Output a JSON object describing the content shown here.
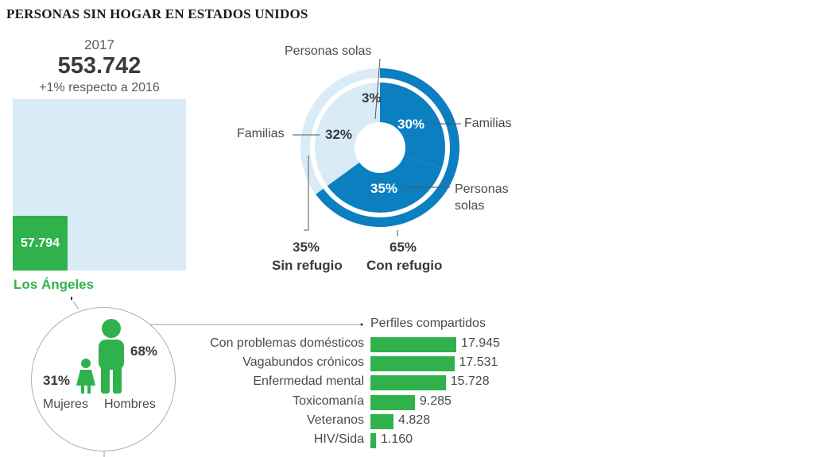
{
  "title": "PERSONAS SIN HOGAR EN ESTADOS UNIDOS",
  "summary": {
    "year": "2017",
    "total": "553.742",
    "change": "+1% respecto a 2016",
    "la_value": "57.794",
    "la_label": "Los Ángeles"
  },
  "gender": {
    "women_pct": "31%",
    "men_pct": "68%",
    "women_label": "Mujeres",
    "men_label": "Hombres"
  },
  "colors": {
    "light_blue": "#d9ebf7",
    "blue": "#0b7fc0",
    "green": "#2fb24c",
    "text": "#4a4a4a"
  },
  "chart_data": [
    {
      "type": "pie",
      "labels": [
        "Personas solas",
        "Familias",
        "Familias",
        "Personas solas"
      ],
      "inner_ring": [
        {
          "label": "Familias",
          "value": 30,
          "display": "30%",
          "group": "Con refugio"
        },
        {
          "label": "Personas solas",
          "value": 35,
          "display": "35%",
          "group": "Con refugio"
        },
        {
          "label": "Familias",
          "value": 32,
          "display": "32%",
          "group": "Sin refugio"
        },
        {
          "label": "Personas solas",
          "value": 3,
          "display": "3%",
          "group": "Sin refugio"
        }
      ],
      "outer_ring": [
        {
          "label": "Con refugio",
          "value": 65,
          "display": "65%"
        },
        {
          "label": "Sin refugio",
          "value": 35,
          "display": "35%"
        }
      ]
    },
    {
      "type": "bar",
      "title": "Perfiles compartidos",
      "categories": [
        "Con problemas domésticos",
        "Vagabundos crónicos",
        "Enfermedad mental",
        "Toxicomanía",
        "Veteranos",
        "HIV/Sida"
      ],
      "values": [
        17945,
        17531,
        15728,
        9285,
        4828,
        1160
      ],
      "value_labels": [
        "17.945",
        "17.531",
        "15.728",
        "9.285",
        "4.828",
        "1.160"
      ]
    }
  ]
}
